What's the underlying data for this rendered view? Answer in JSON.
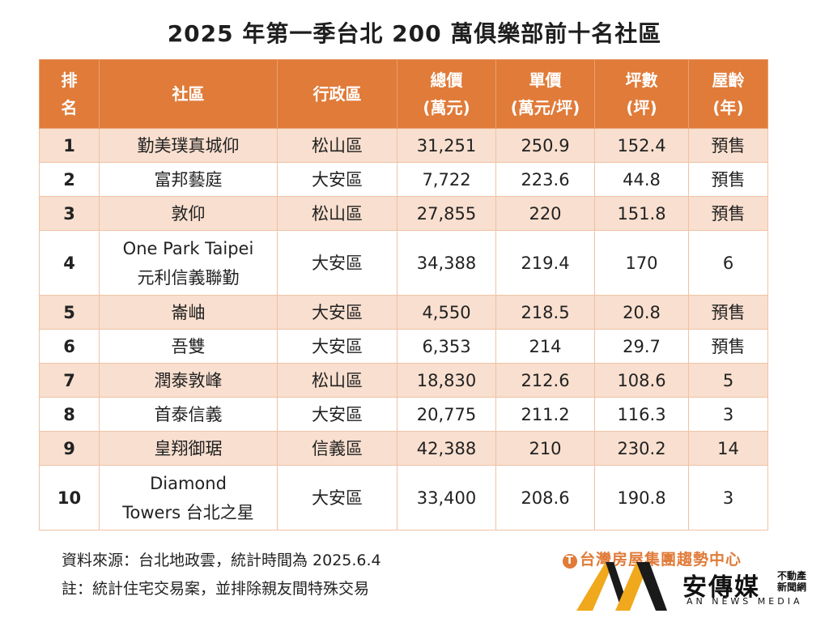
{
  "title": "2025 年第一季台北 200 萬俱樂部前十名社區",
  "header": {
    "rank": [
      "排",
      "名"
    ],
    "community": "社區",
    "district": "行政區",
    "total_price": [
      "總價",
      "(萬元)"
    ],
    "unit_price": [
      "單價",
      "(萬元/坪)"
    ],
    "area": [
      "坪數",
      "(坪)"
    ],
    "age": [
      "屋齡",
      "(年)"
    ]
  },
  "rows": [
    {
      "rank": "1",
      "name": [
        "勤美璞真城仰"
      ],
      "district": "松山區",
      "total": "31,251",
      "unit": "250.9",
      "area": "152.4",
      "age": "預售"
    },
    {
      "rank": "2",
      "name": [
        "富邦藝庭"
      ],
      "district": "大安區",
      "total": "7,722",
      "unit": "223.6",
      "area": "44.8",
      "age": "預售"
    },
    {
      "rank": "3",
      "name": [
        "敦仰"
      ],
      "district": "松山區",
      "total": "27,855",
      "unit": "220",
      "area": "151.8",
      "age": "預售"
    },
    {
      "rank": "4",
      "name": [
        "One Park Taipei",
        "元利信義聯勤"
      ],
      "district": "大安區",
      "total": "34,388",
      "unit": "219.4",
      "area": "170",
      "age": "6"
    },
    {
      "rank": "5",
      "name": [
        "崙岫"
      ],
      "district": "大安區",
      "total": "4,550",
      "unit": "218.5",
      "area": "20.8",
      "age": "預售"
    },
    {
      "rank": "6",
      "name": [
        "吾雙"
      ],
      "district": "大安區",
      "total": "6,353",
      "unit": "214",
      "area": "29.7",
      "age": "預售"
    },
    {
      "rank": "7",
      "name": [
        "潤泰敦峰"
      ],
      "district": "松山區",
      "total": "18,830",
      "unit": "212.6",
      "area": "108.6",
      "age": "5"
    },
    {
      "rank": "8",
      "name": [
        "首泰信義"
      ],
      "district": "大安區",
      "total": "20,775",
      "unit": "211.2",
      "area": "116.3",
      "age": "3"
    },
    {
      "rank": "9",
      "name": [
        "皇翔御琚"
      ],
      "district": "信義區",
      "total": "42,388",
      "unit": "210",
      "area": "230.2",
      "age": "14"
    },
    {
      "rank": "10",
      "name": [
        "Diamond",
        "Towers 台北之星"
      ],
      "district": "大安區",
      "total": "33,400",
      "unit": "208.6",
      "area": "190.8",
      "age": "3"
    }
  ],
  "notes": {
    "source": "資料來源：台北地政雲，統計時間為 2025.6.4",
    "remark": "註：統計住宅交易案，並排除親友間特殊交易"
  },
  "brand": {
    "org": "台灣房屋集團趨勢中心",
    "name": "安傳媒",
    "sub": [
      "不動產",
      "新聞網"
    ],
    "english": "AN NEWS MEDIA"
  },
  "colors": {
    "header_bg": "#e07b39",
    "odd_row_bg": "#f8dfcf",
    "logo_gold": "#f0a81c"
  }
}
